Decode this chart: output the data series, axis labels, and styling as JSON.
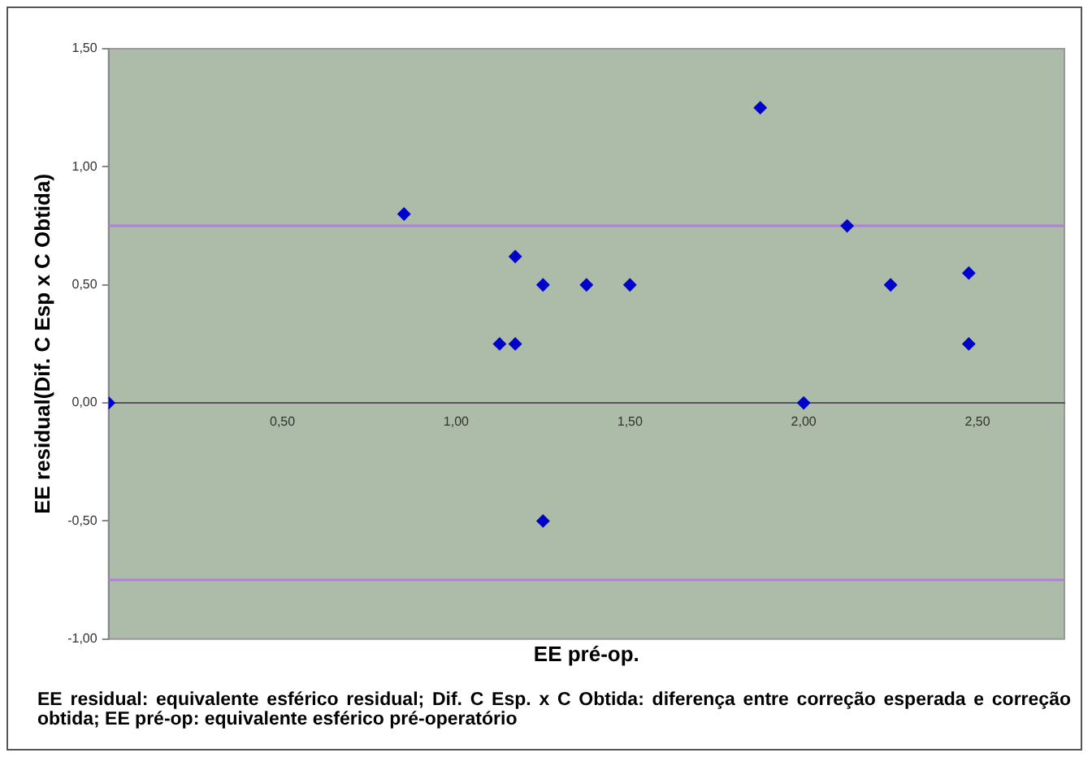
{
  "chart_data": {
    "type": "scatter",
    "xlabel": "EE pré-op.",
    "ylabel": "EE residual(Dif. C Esp x C Obtida)",
    "x": [
      0,
      0.85,
      1.125,
      1.17,
      1.17,
      1.25,
      1.25,
      1.375,
      1.5,
      1.875,
      2.0,
      2.125,
      2.25,
      2.475,
      2.475
    ],
    "series": [
      {
        "color": "#0000cc",
        "values": [
          0,
          0.8,
          0.25,
          0.25,
          0.62,
          0.5,
          -0.5,
          0.5,
          0.5,
          1.25,
          0,
          0.75,
          0.5,
          0.55,
          0.25
        ]
      }
    ],
    "marker": "diamond",
    "xlim": [
      0,
      2.75
    ],
    "xticks": [
      {
        "value": 0.5,
        "label": "0,50"
      },
      {
        "value": 1,
        "label": "1,00"
      },
      {
        "value": 1.5,
        "label": "1,50"
      },
      {
        "value": 2,
        "label": "2,00"
      },
      {
        "value": 2.5,
        "label": "2,50"
      }
    ],
    "ylim": [
      -1,
      1.5
    ],
    "yticks": [
      {
        "value": -1,
        "label": "-1,00"
      },
      {
        "value": -0.5,
        "label": "-0,50"
      },
      {
        "value": 0,
        "label": "0,00"
      },
      {
        "value": 0.5,
        "label": "0,50"
      },
      {
        "value": 1,
        "label": "1,00"
      },
      {
        "value": 1.5,
        "label": "1,50"
      }
    ],
    "ref_lines": [
      {
        "axis": "y",
        "value": 0.75,
        "color": "#b080d8"
      },
      {
        "axis": "y",
        "value": -0.75,
        "color": "#b080d8"
      }
    ],
    "grid": false,
    "legend": false,
    "annotations": [
      "EE residual: equivalente esférico residual; Dif. C Esp. x C Obtida: diferença entre correção esperada e correção obtida; EE pré-op: equivalente esférico pré-operatório"
    ]
  }
}
